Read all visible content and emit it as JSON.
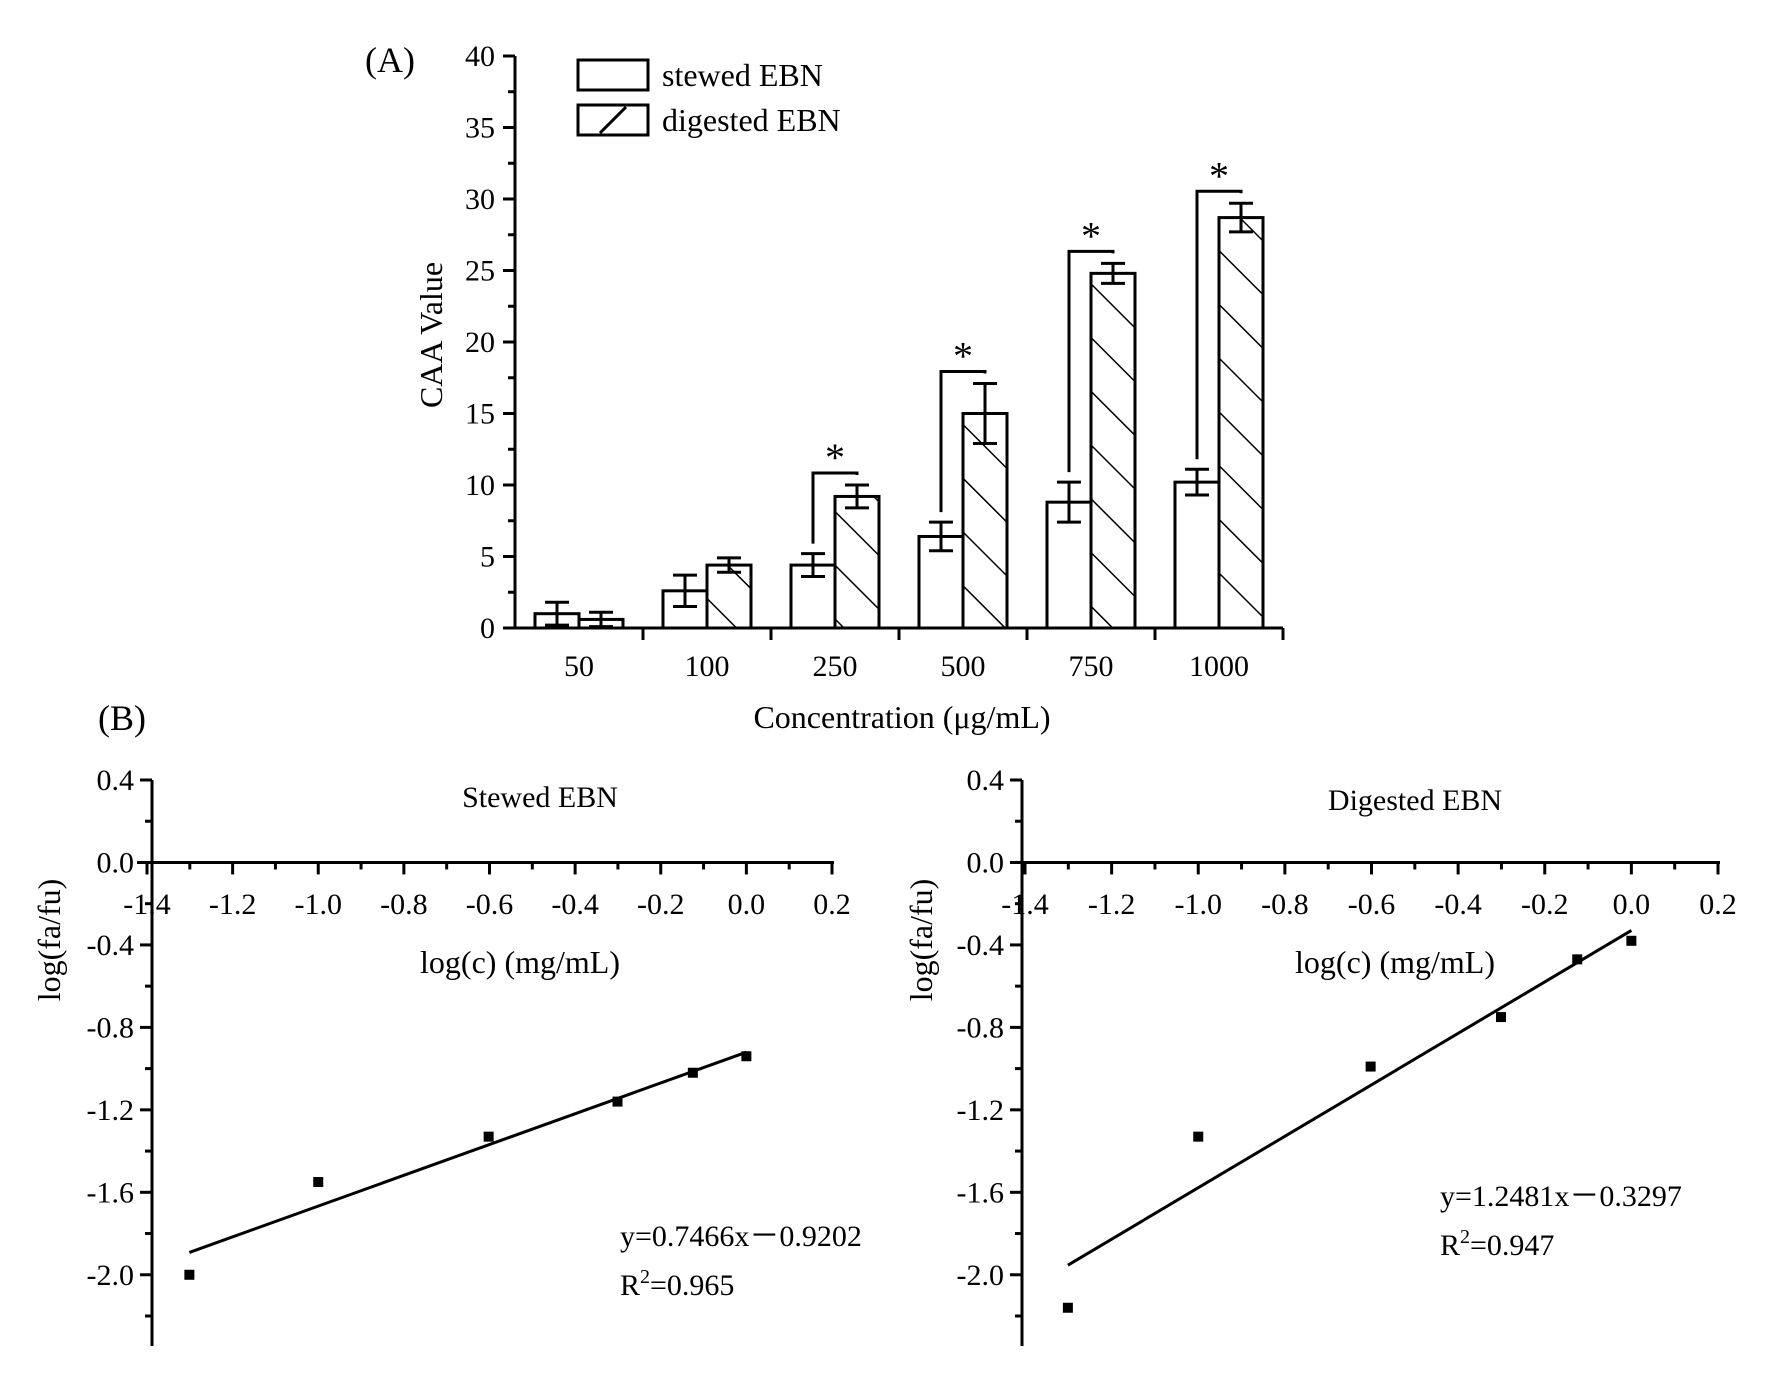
{
  "colors": {
    "ink": "#000000",
    "background": "#ffffff"
  },
  "chart_data": [
    {
      "id": "A",
      "panel_label": "(A)",
      "type": "bar",
      "title": "",
      "xlabel": "Concentration (μg/mL)",
      "ylabel": "CAA Value",
      "ylim": [
        0,
        40
      ],
      "yticks": [
        0,
        5,
        10,
        15,
        20,
        25,
        30,
        35,
        40
      ],
      "categories": [
        "50",
        "100",
        "250",
        "500",
        "750",
        "1000"
      ],
      "legend_position": "top-left",
      "series": [
        {
          "name": "stewed EBN",
          "pattern": "none",
          "values": [
            1.0,
            2.6,
            4.4,
            6.4,
            8.8,
            10.2
          ],
          "errors": [
            0.8,
            1.1,
            0.8,
            1.0,
            1.4,
            0.9
          ]
        },
        {
          "name": "digested EBN",
          "pattern": "hatch",
          "values": [
            0.6,
            4.4,
            9.2,
            15.0,
            24.8,
            28.7
          ],
          "errors": [
            0.5,
            0.5,
            0.8,
            2.1,
            0.7,
            1.0
          ]
        }
      ],
      "significance": [
        {
          "category": "250",
          "label": "*"
        },
        {
          "category": "500",
          "label": "*"
        },
        {
          "category": "750",
          "label": "*"
        },
        {
          "category": "1000",
          "label": "*"
        }
      ]
    },
    {
      "id": "B1",
      "panel_label": "(B)",
      "type": "scatter",
      "title": "Stewed EBN",
      "xlabel": "log(c) (mg/mL)",
      "ylabel": "log(fa/fu)",
      "xlim": [
        -1.4,
        0.2
      ],
      "ylim": [
        -2.2,
        0.4
      ],
      "xticks": [
        "-1.4",
        "-1.2",
        "-1.0",
        "-0.8",
        "-0.6",
        "-0.4",
        "-0.2",
        "0.0",
        "0.2"
      ],
      "yticks": [
        "0.4",
        "0.0",
        "-0.4",
        "-0.8",
        "-1.2",
        "-1.6",
        "-2.0"
      ],
      "points": [
        {
          "x": -1.301,
          "y": -2.0
        },
        {
          "x": -1.0,
          "y": -1.55
        },
        {
          "x": -0.602,
          "y": -1.33
        },
        {
          "x": -0.301,
          "y": -1.16
        },
        {
          "x": -0.125,
          "y": -1.02
        },
        {
          "x": 0.0,
          "y": -0.94
        }
      ],
      "fit": {
        "slope": 0.7466,
        "intercept": -0.9202,
        "x_range": [
          -1.301,
          0.0
        ]
      },
      "equation": "y=0.7466x－0.9202",
      "r2_prefix": "R",
      "r2_sup": "2",
      "r2_value": "=0.965"
    },
    {
      "id": "B2",
      "type": "scatter",
      "title": "Digested EBN",
      "xlabel": "log(c) (mg/mL)",
      "ylabel": "log(fa/fu)",
      "xlim": [
        -1.4,
        0.2
      ],
      "ylim": [
        -2.2,
        0.4
      ],
      "xticks": [
        "-1.4",
        "-1.2",
        "-1.0",
        "-0.8",
        "-0.6",
        "-0.4",
        "-0.2",
        "0.0",
        "0.2"
      ],
      "yticks": [
        "0.4",
        "0.0",
        "-0.4",
        "-0.8",
        "-1.2",
        "-1.6",
        "-2.0"
      ],
      "points": [
        {
          "x": -1.301,
          "y": -2.16
        },
        {
          "x": -1.0,
          "y": -1.33
        },
        {
          "x": -0.602,
          "y": -0.99
        },
        {
          "x": -0.301,
          "y": -0.75
        },
        {
          "x": -0.125,
          "y": -0.47
        },
        {
          "x": 0.0,
          "y": -0.38
        }
      ],
      "fit": {
        "slope": 1.2481,
        "intercept": -0.3297,
        "x_range": [
          -1.301,
          0.0
        ]
      },
      "equation": "y=1.2481x－0.3297",
      "r2_prefix": "R",
      "r2_sup": "2",
      "r2_value": "=0.947"
    }
  ]
}
